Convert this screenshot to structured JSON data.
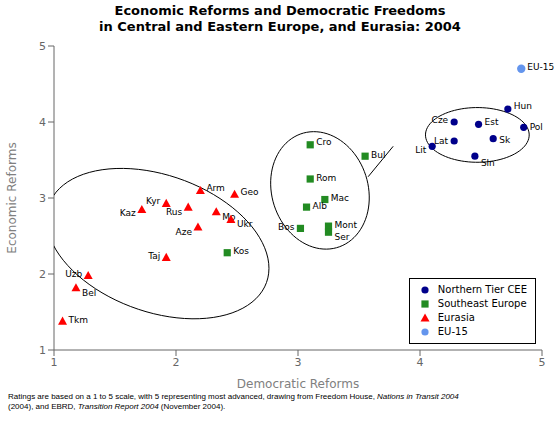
{
  "chart_data": {
    "type": "scatter",
    "title": "Economic Reforms and Democratic Freedoms\nin Central and Eastern Europe, and Eurasia: 2004",
    "xlabel": "Democratic Reforms",
    "ylabel": "Economic Reforms",
    "xlim": [
      1,
      5
    ],
    "ylim": [
      1,
      5
    ],
    "xticks": [
      1,
      2,
      3,
      4,
      5
    ],
    "yticks": [
      1,
      2,
      3,
      4,
      5
    ],
    "grid": false,
    "legend": "lower right",
    "series": [
      {
        "name": "Northern Tier CEE",
        "color": "#00008B",
        "marker": "circle",
        "labels": [
          "Hun",
          "Cze",
          "Est",
          "Pol",
          "Lat",
          "Sk",
          "Lit",
          "Sln"
        ],
        "x": [
          4.72,
          4.28,
          4.48,
          4.85,
          4.28,
          4.6,
          4.1,
          4.45
        ],
        "y": [
          4.17,
          4.0,
          3.97,
          3.93,
          3.75,
          3.78,
          3.68,
          3.55
        ]
      },
      {
        "name": "Southeast Europe",
        "color": "#228B22",
        "marker": "square",
        "labels": [
          "Cro",
          "Bul",
          "Rom",
          "Mac",
          "Alb",
          "Bos",
          "Mont",
          "Ser",
          "Kos"
        ],
        "x": [
          3.1,
          3.55,
          3.1,
          3.22,
          3.07,
          3.02,
          3.25,
          3.25,
          2.42
        ],
        "y": [
          3.7,
          3.55,
          3.25,
          2.98,
          2.88,
          2.6,
          2.63,
          2.55,
          2.28
        ]
      },
      {
        "name": "Eurasia",
        "color": "#FF0000",
        "marker": "triangle",
        "labels": [
          "Arm",
          "Geo",
          "Kyr",
          "Rus",
          "Mo",
          "Ukr",
          "Kaz",
          "Aze",
          "Taj",
          "Uzb",
          "Bel",
          "Tkm"
        ],
        "x": [
          2.2,
          2.48,
          1.92,
          2.1,
          2.33,
          2.45,
          1.72,
          2.18,
          1.92,
          1.28,
          1.18,
          1.07
        ],
        "y": [
          3.1,
          3.05,
          2.93,
          2.88,
          2.82,
          2.72,
          2.85,
          2.62,
          2.22,
          1.98,
          1.82,
          1.38
        ]
      },
      {
        "name": "EU-15",
        "color": "#6495ED",
        "marker": "circle",
        "labels": [
          "EU-15"
        ],
        "x": [
          4.83
        ],
        "y": [
          4.7
        ]
      }
    ],
    "ellipses": [
      {
        "cx": 1.85,
        "cy": 2.4,
        "width": 1.55,
        "height": 2.2,
        "angle": 38
      },
      {
        "cx": 3.18,
        "cy": 3.1,
        "width": 0.8,
        "height": 1.55,
        "angle": 5
      },
      {
        "cx": 4.47,
        "cy": 3.83,
        "width": 0.85,
        "height": 0.72,
        "angle": 0
      }
    ],
    "line": {
      "x": [
        3.78,
        3.575
      ],
      "y": [
        3.68,
        3.28
      ]
    },
    "footnote": [
      {
        "text": "Ratings are based on a 1 to 5 scale, with 5 representing most advanced, drawing from Freedom House, ",
        "style": "normal"
      },
      {
        "text": "Nations in Transit 2004",
        "style": "italic"
      },
      {
        "text": "\n(2004), and EBRD, ",
        "style": "normal"
      },
      {
        "text": "Transition Report 2004",
        "style": "italic"
      },
      {
        "text": " (November 2004).",
        "style": "normal"
      }
    ]
  }
}
